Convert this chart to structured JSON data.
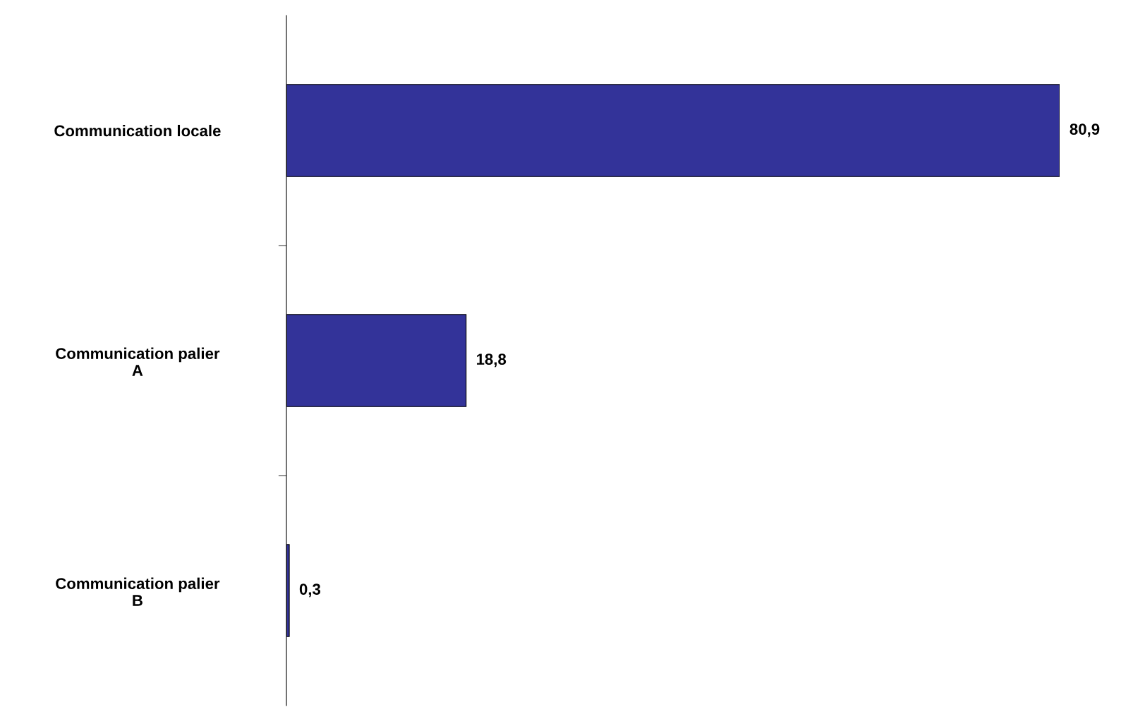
{
  "chart_data": {
    "type": "bar",
    "orientation": "horizontal",
    "categories": [
      "Communication locale",
      "Communication palier\nA",
      "Communication palier\nB"
    ],
    "values": [
      80.9,
      18.8,
      0.3
    ],
    "value_labels": [
      "80,9",
      "18,8",
      "0,3"
    ],
    "color": "#333399",
    "grid": false,
    "legend": false
  }
}
